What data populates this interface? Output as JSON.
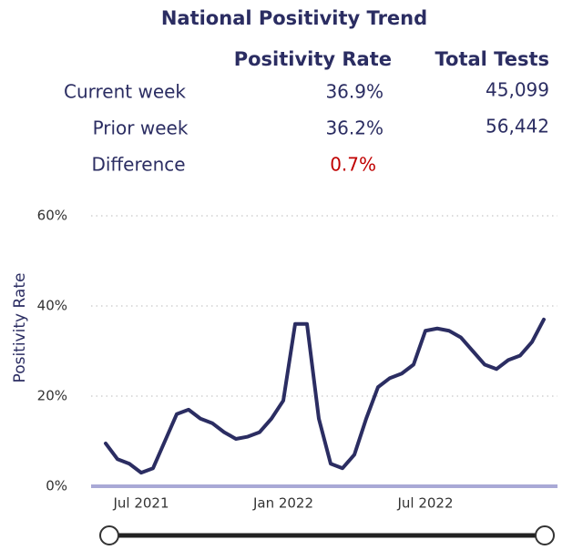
{
  "header": {
    "title": "National Positivity Trend"
  },
  "table": {
    "columns": [
      "Positivity Rate",
      "Total Tests"
    ],
    "rows": [
      [
        "Current week",
        "36.9%",
        "45,099"
      ],
      [
        "Prior week",
        "36.2%",
        "56,442"
      ],
      [
        "Difference",
        "0.7%"
      ]
    ]
  },
  "chart_data": {
    "type": "line",
    "y_label": "Positivity Rate",
    "categories": [
      null,
      null,
      null,
      "Jul 2021",
      null,
      null,
      null,
      null,
      null,
      null,
      null,
      null,
      null,
      null,
      null,
      "Jan 2022",
      null,
      null,
      null,
      null,
      null,
      null,
      null,
      null,
      null,
      null,
      null,
      "Jul 2022",
      null,
      null,
      null,
      null,
      null,
      null,
      null,
      null,
      null,
      null
    ],
    "series": [
      {
        "name": "Positivity Rate",
        "color": "#2b2d62",
        "values": [
          9.5,
          6,
          5,
          3,
          4,
          10,
          16,
          17,
          15,
          14,
          12,
          10.5,
          11,
          12,
          15,
          19,
          36,
          36,
          15,
          5,
          4,
          7,
          15,
          22,
          24,
          25,
          27,
          34.5,
          35,
          34.5,
          33,
          30,
          27,
          26,
          28,
          29,
          32,
          37
        ]
      }
    ],
    "ylim": [
      0,
      60
    ],
    "yticks": [
      {
        "value": 0,
        "label": "0%"
      },
      {
        "value": 20,
        "label": "20%"
      },
      {
        "value": 40,
        "label": "40%"
      },
      {
        "value": 60,
        "label": "60%"
      }
    ],
    "grid": true
  }
}
